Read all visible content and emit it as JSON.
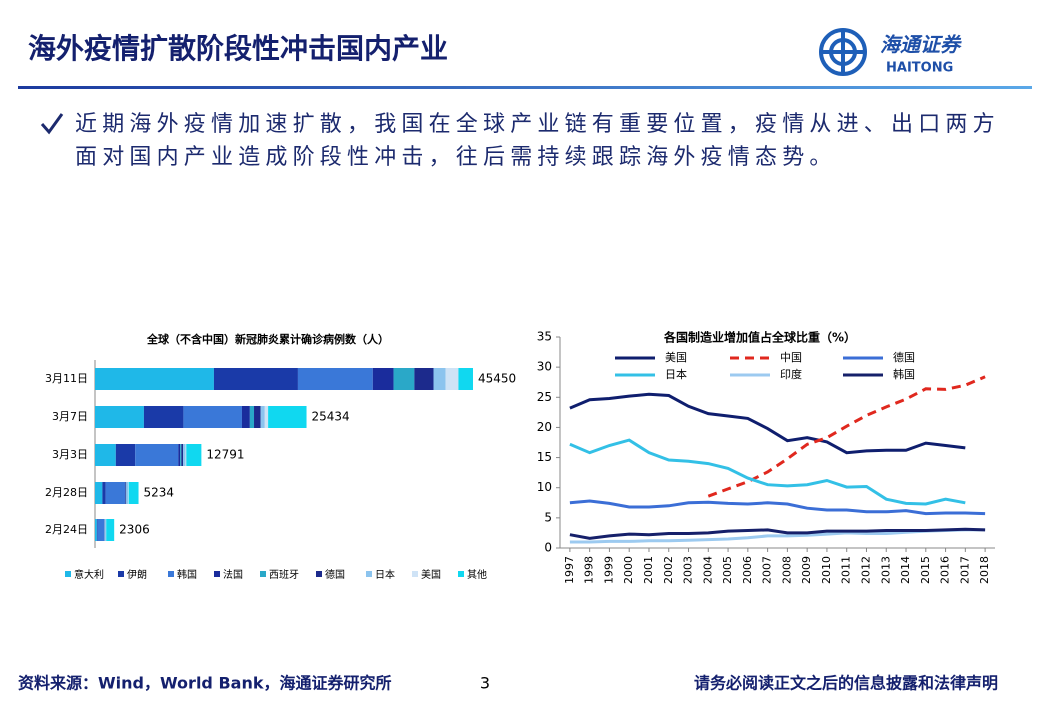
{
  "header": {
    "title": "海外疫情扩散阶段性冲击国内产业",
    "logo_cn": "海通证券",
    "logo_en": "HAITONG"
  },
  "bullet": "近期海外疫情加速扩散，我国在全球产业链有重要位置，疫情从进、出口两方面对国内产业造成阶段性冲击，往后需持续跟踪海外疫情态势。",
  "chart_data": [
    {
      "type": "stacked-hbar",
      "title": "全球（不含中国）新冠肺炎累计确诊病例数（人）",
      "categories": [
        "3月11日",
        "3月7日",
        "3月3日",
        "2月28日",
        "2月24日"
      ],
      "totals": [
        45450,
        25434,
        12791,
        5234,
        2306
      ],
      "series": [
        {
          "name": "意大利",
          "color": "#1fb8e8",
          "values": [
            14300,
            5883,
            2502,
            888,
            229
          ]
        },
        {
          "name": "伊朗",
          "color": "#1a3aa8",
          "values": [
            10100,
            4747,
            2336,
            388,
            61
          ]
        },
        {
          "name": "韩国",
          "color": "#3a78d8",
          "values": [
            9000,
            7041,
            5186,
            2337,
            833
          ]
        },
        {
          "name": "法国",
          "color": "#1a2c9c",
          "values": [
            2500,
            949,
            212,
            57,
            12
          ]
        },
        {
          "name": "西班牙",
          "color": "#2aa8c8",
          "values": [
            2500,
            500,
            151,
            32,
            2
          ]
        },
        {
          "name": "德国",
          "color": "#1c2a8c",
          "values": [
            2300,
            795,
            196,
            53,
            16
          ]
        },
        {
          "name": "日本",
          "color": "#8cc4ee",
          "values": [
            1450,
            500,
            293,
            230,
            160
          ]
        },
        {
          "name": "美国",
          "color": "#cfe3f6",
          "values": [
            1550,
            400,
            103,
            62,
            35
          ]
        },
        {
          "name": "其他",
          "color": "#10d8f0",
          "values": [
            1750,
            4619,
            1812,
            1187,
            958
          ]
        }
      ]
    },
    {
      "type": "line",
      "title": "各国制造业增加值占全球比重（%）",
      "categories": [
        "1997",
        "1998",
        "1999",
        "2000",
        "2001",
        "2002",
        "2003",
        "2004",
        "2005",
        "2006",
        "2007",
        "2008",
        "2009",
        "2010",
        "2011",
        "2012",
        "2013",
        "2014",
        "2015",
        "2016",
        "2017",
        "2018"
      ],
      "ylim": [
        0,
        35
      ],
      "yticks": [
        0,
        5,
        10,
        15,
        20,
        25,
        30,
        35
      ],
      "series": [
        {
          "name": "美国",
          "color": "#0f1e6e",
          "dash": false,
          "values": [
            23.2,
            24.6,
            24.8,
            25.2,
            25.5,
            25.3,
            23.5,
            22.3,
            21.9,
            21.5,
            19.8,
            17.8,
            18.3,
            17.6,
            15.8,
            16.1,
            16.2,
            16.2,
            17.4,
            17.0,
            16.6,
            null
          ]
        },
        {
          "name": "中国",
          "color": "#e0281e",
          "dash": true,
          "values": [
            null,
            null,
            null,
            null,
            null,
            null,
            null,
            8.6,
            9.8,
            11.0,
            12.6,
            14.8,
            17.2,
            18.3,
            20.2,
            22.0,
            23.4,
            24.7,
            26.4,
            26.3,
            27.0,
            28.4
          ]
        },
        {
          "name": "德国",
          "color": "#3b6ed6",
          "dash": false,
          "values": [
            7.5,
            7.8,
            7.4,
            6.8,
            6.8,
            7.0,
            7.5,
            7.6,
            7.4,
            7.3,
            7.5,
            7.3,
            6.6,
            6.3,
            6.3,
            6.0,
            6.0,
            6.2,
            5.7,
            5.8,
            5.8,
            5.7
          ]
        },
        {
          "name": "日本",
          "color": "#33c0e6",
          "dash": false,
          "values": [
            17.2,
            15.8,
            17.0,
            17.9,
            15.8,
            14.6,
            14.4,
            14.0,
            13.2,
            11.6,
            10.5,
            10.3,
            10.5,
            11.2,
            10.1,
            10.2,
            8.1,
            7.4,
            7.3,
            8.1,
            7.5,
            null
          ]
        },
        {
          "name": "印度",
          "color": "#9ccaf0",
          "dash": false,
          "values": [
            1.0,
            1.0,
            1.1,
            1.1,
            1.2,
            1.2,
            1.3,
            1.4,
            1.5,
            1.7,
            2.0,
            2.0,
            2.1,
            2.3,
            2.5,
            2.4,
            2.4,
            2.6,
            2.8,
            2.9,
            3.0,
            3.0
          ]
        },
        {
          "name": "韩国",
          "color": "#16206a",
          "dash": false,
          "values": [
            2.2,
            1.6,
            2.0,
            2.3,
            2.2,
            2.4,
            2.4,
            2.5,
            2.8,
            2.9,
            3.0,
            2.5,
            2.5,
            2.8,
            2.8,
            2.8,
            2.9,
            2.9,
            2.9,
            3.0,
            3.1,
            3.0
          ]
        }
      ]
    }
  ],
  "footer": {
    "source": "资料来源：Wind，World Bank，海通证券研究所",
    "page": "3",
    "disclaimer": "请务必阅读正文之后的信息披露和法律声明"
  }
}
